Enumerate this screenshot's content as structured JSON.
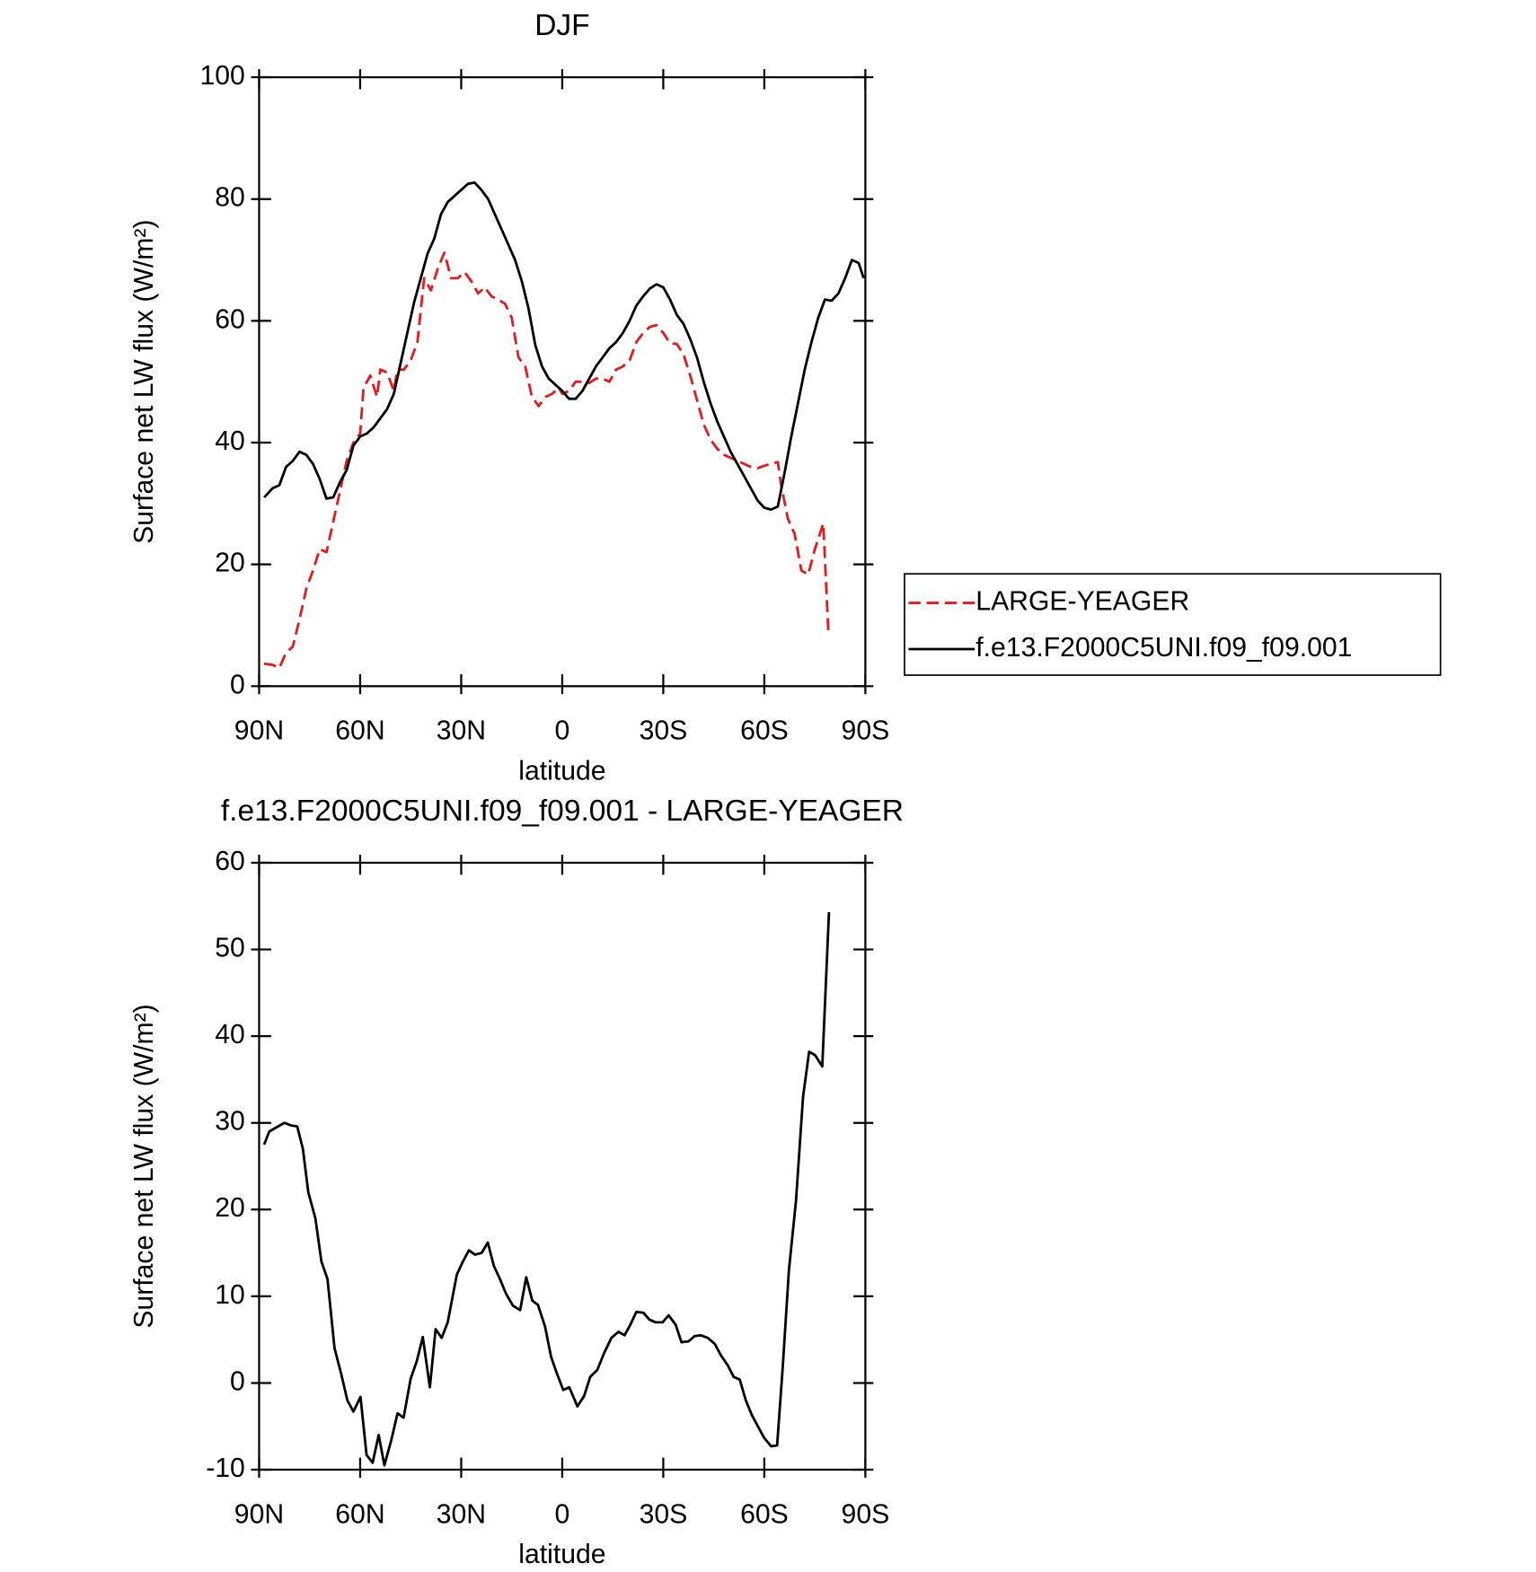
{
  "chart_data": [
    {
      "type": "line",
      "title": "DJF",
      "xlabel": "latitude",
      "ylabel": "Surface net LW flux (W/m²)",
      "xlim": [
        90,
        -90
      ],
      "ylim": [
        0,
        100
      ],
      "xticks": [
        {
          "value": 90,
          "label": "90N"
        },
        {
          "value": 60,
          "label": "60N"
        },
        {
          "value": 30,
          "label": "30N"
        },
        0,
        {
          "value": -30,
          "label": "30S"
        },
        {
          "value": -60,
          "label": "60S"
        },
        {
          "value": -90,
          "label": "90S"
        }
      ],
      "yticks": [
        0,
        20,
        40,
        60,
        80,
        100
      ],
      "legend": "right",
      "series": [
        {
          "name": "LARGE-YEAGER",
          "color": "#e41a1c",
          "linestyle": "dashed",
          "x": [
            88.5,
            86,
            84,
            82,
            80,
            78,
            76,
            74,
            72,
            70,
            68,
            66,
            64,
            62,
            60,
            59,
            57,
            55,
            54,
            52,
            50,
            49,
            47,
            45,
            43,
            41,
            39,
            37,
            35,
            33,
            31,
            29,
            27,
            25,
            23,
            21,
            19,
            17,
            15,
            13,
            11,
            9,
            7,
            5,
            3,
            1,
            0,
            -2,
            -4,
            -6,
            -8,
            -10,
            -12,
            -14,
            -16,
            -18,
            -20,
            -22,
            -24,
            -26,
            -28,
            -30,
            -32,
            -34,
            -36,
            -38,
            -40,
            -42,
            -44,
            -46,
            -48,
            -50,
            -52,
            -54,
            -56,
            -58,
            -60,
            -62,
            -64,
            -65,
            -67,
            -69,
            -71,
            -73,
            -75,
            -77.5,
            -79
          ],
          "values": [
            3.7,
            3.5,
            3,
            5.5,
            6.5,
            11,
            16,
            19,
            22.5,
            22,
            27,
            32,
            37,
            40,
            41.5,
            49,
            51,
            47.5,
            52,
            51.5,
            48.5,
            52,
            52,
            53.5,
            56.5,
            67,
            65,
            68.5,
            71.2,
            67,
            67,
            68,
            66.5,
            64.5,
            65.5,
            64,
            63.5,
            62.8,
            60.5,
            54,
            52.5,
            47.5,
            46,
            47.5,
            48,
            49,
            48,
            48.5,
            50,
            50,
            49.8,
            50.5,
            50.5,
            50,
            52,
            52.5,
            53.5,
            56.5,
            58,
            59,
            59.3,
            58,
            56.3,
            56.2,
            54.5,
            51,
            47,
            43,
            40.5,
            39,
            38,
            37.5,
            37,
            36.5,
            36,
            35.8,
            36.2,
            36.5,
            36.8,
            33,
            27.5,
            25,
            19,
            18.3,
            22.5,
            26.7,
            9
          ]
        },
        {
          "name": "f.e13.F2000C5UNI.f09_f09.001",
          "color": "#000000",
          "linestyle": "solid",
          "x": [
            88.5,
            86,
            84,
            82,
            80,
            78,
            76,
            74,
            72,
            70,
            68,
            66,
            64,
            62,
            60,
            58,
            56,
            54,
            52,
            50,
            48,
            46,
            44,
            42,
            40,
            38,
            36,
            34,
            32,
            30,
            28,
            26,
            24,
            22,
            20,
            18,
            16,
            14,
            12,
            10,
            8,
            6,
            4,
            2,
            0,
            -2,
            -4,
            -6,
            -8,
            -10,
            -12,
            -14,
            -16,
            -18,
            -20,
            -22,
            -24,
            -26,
            -28,
            -30,
            -32,
            -34,
            -36,
            -38,
            -40,
            -42,
            -44,
            -46,
            -48,
            -50,
            -52,
            -54,
            -56,
            -58,
            -60,
            -62,
            -64,
            -66,
            -68,
            -70,
            -72,
            -74,
            -76,
            -78,
            -80,
            -82,
            -84,
            -86,
            -88,
            -89.5
          ],
          "values": [
            31,
            32.5,
            33,
            36,
            37,
            38.5,
            38,
            36.5,
            34,
            30.8,
            31,
            33.5,
            35.5,
            39.5,
            41,
            41.5,
            42.5,
            44,
            45.5,
            48,
            53,
            58,
            63,
            67,
            71,
            73.5,
            77.5,
            79.5,
            80.5,
            81.5,
            82.5,
            82.7,
            81.5,
            80,
            77.5,
            75,
            72.5,
            70,
            66.5,
            62,
            56,
            52.5,
            50.5,
            49.5,
            48.5,
            47.2,
            47.2,
            48.5,
            50.5,
            52.5,
            54,
            55.5,
            56.5,
            58,
            60,
            62.5,
            64,
            65.3,
            66,
            65.5,
            63.5,
            61,
            59.5,
            57,
            54,
            50,
            46.5,
            43.5,
            41,
            38.5,
            36.5,
            34.5,
            32.5,
            30.5,
            29.3,
            29,
            29.5,
            35,
            41,
            46.5,
            52,
            56.5,
            60.5,
            63.5,
            63.3,
            64.5,
            67,
            70,
            69.5,
            67
          ]
        }
      ]
    },
    {
      "type": "line",
      "title": "f.e13.F2000C5UNI.f09_f09.001 - LARGE-YEAGER",
      "xlabel": "latitude",
      "ylabel": "Surface net LW flux (W/m²)",
      "xlim": [
        90,
        -90
      ],
      "ylim": [
        -10,
        60
      ],
      "xticks": [
        {
          "value": 90,
          "label": "90N"
        },
        {
          "value": 60,
          "label": "60N"
        },
        {
          "value": 30,
          "label": "30N"
        },
        0,
        {
          "value": -30,
          "label": "30S"
        },
        {
          "value": -60,
          "label": "60S"
        },
        {
          "value": -90,
          "label": "90S"
        }
      ],
      "yticks": [
        -10,
        0,
        10,
        20,
        30,
        40,
        50,
        60
      ],
      "series": [
        {
          "color": "#000000",
          "linestyle": "solid",
          "x": [
            88.5,
            87,
            82.5,
            80.5,
            78.7,
            77,
            75.4,
            73.3,
            71.5,
            69.7,
            67.6,
            65.6,
            63.8,
            62,
            59.9,
            58.1,
            56.3,
            54.5,
            52.8,
            50.7,
            48.9,
            47.1,
            45,
            43.2,
            41.4,
            39.3,
            37.6,
            35.8,
            34,
            31.3,
            29.5,
            27.7,
            25.9,
            23.9,
            22.1,
            20.3,
            18.5,
            16.7,
            14.6,
            12.5,
            10.7,
            8.9,
            7.2,
            5.1,
            3.3,
            1.5,
            -0.3,
            -2.1,
            -4.5,
            -6.5,
            -8.3,
            -10.4,
            -12.5,
            -14.6,
            -16.7,
            -18.5,
            -20.2,
            -22,
            -24.1,
            -25.9,
            -27.7,
            -29.8,
            -31.6,
            -33.7,
            -35.4,
            -37.5,
            -39.3,
            -41.1,
            -43.2,
            -45.3,
            -47.1,
            -49.2,
            -50.9,
            -52.7,
            -54.5,
            -56.3,
            -58.1,
            -59.9,
            -62,
            -63.8,
            -65.5,
            -67.3,
            -69.4,
            -71.5,
            -73.3,
            -75.1,
            -77.2,
            -79.2
          ],
          "values": [
            27.5,
            29,
            30,
            29.7,
            29.6,
            27,
            22,
            19,
            14,
            12,
            4,
            1,
            -2,
            -3.3,
            -1.6,
            -8.3,
            -9.2,
            -6,
            -9.5,
            -6.5,
            -3.5,
            -4,
            0.5,
            2.5,
            5.3,
            -0.5,
            6.2,
            5.2,
            7,
            12.5,
            14,
            15.3,
            14.8,
            15,
            16.2,
            13.5,
            12,
            10.3,
            8.9,
            8.4,
            12.2,
            9.5,
            9,
            6.5,
            3,
            1,
            -0.8,
            -0.5,
            -2.7,
            -1.5,
            0.7,
            1.5,
            3.5,
            5.2,
            5.9,
            5.5,
            6.7,
            8.2,
            8.1,
            7.3,
            7,
            7,
            7.8,
            6.7,
            4.7,
            4.8,
            5.4,
            5.5,
            5.2,
            4.5,
            3.2,
            2,
            0.7,
            0.4,
            -2,
            -3.7,
            -5,
            -6.3,
            -7.3,
            -7.2,
            2,
            13,
            21,
            33,
            38.2,
            37.8,
            36.5,
            54.3
          ]
        }
      ]
    }
  ]
}
